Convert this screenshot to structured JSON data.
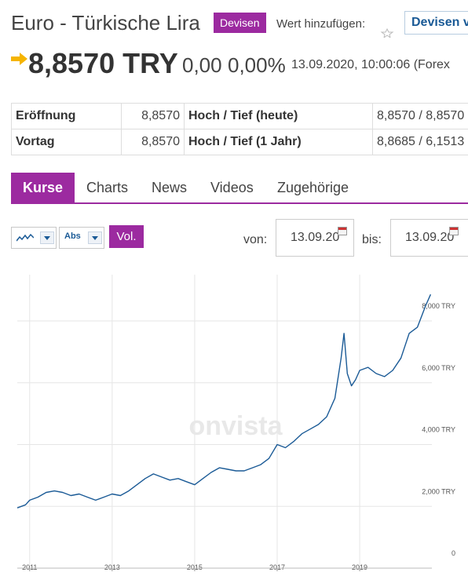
{
  "header": {
    "title": "Euro - Türkische Lira",
    "badge": "Devisen",
    "add_label": "Wert hinzufügen:",
    "watchlist_button": "Devisen v",
    "price": "8,8570 TRY",
    "change_abs": "0,00",
    "change_pct": "0,00%",
    "datetime": "13.09.2020, 10:00:06 (Forex"
  },
  "kpi": {
    "rows": [
      {
        "label1": "Eröffnung",
        "value1": "8,8570",
        "label2": "Hoch / Tief (heute)",
        "value2": "8,8570 / 8,8570"
      },
      {
        "label1": "Vortag",
        "value1": "8,8570",
        "label2": "Hoch / Tief (1 Jahr)",
        "value2": "8,8685 / 6,1513"
      }
    ]
  },
  "tabs": [
    "Kurse",
    "Charts",
    "News",
    "Videos",
    "Zugehörige"
  ],
  "controls": {
    "scale": "Abs",
    "vol": "Vol.",
    "von_label": "von:",
    "von_value": "13.09.20",
    "bis_label": "bis:",
    "bis_value": "13.09.20"
  },
  "colors": {
    "accent": "#9c2aa0",
    "line": "#1a5a96",
    "link": "#1a5a96"
  },
  "chart_data": {
    "type": "line",
    "watermark": "onvista",
    "y_ticks": [
      "8,000 TRY",
      "6,000 TRY",
      "4,000 TRY",
      "2,000 TRY",
      "0"
    ],
    "y_tick_values": [
      8,
      6,
      4,
      2,
      0
    ],
    "x_ticks": [
      "2011",
      "2013",
      "2015",
      "2017",
      "2019"
    ],
    "x_tick_values": [
      2011,
      2013,
      2015,
      2017,
      2019
    ],
    "ylim": [
      0,
      9.5
    ],
    "xlim": [
      2010.7,
      2020.75
    ],
    "series": [
      {
        "x": [
          2010.7,
          2010.9,
          2011.0,
          2011.2,
          2011.4,
          2011.6,
          2011.8,
          2012.0,
          2012.2,
          2012.4,
          2012.6,
          2012.8,
          2013.0,
          2013.2,
          2013.4,
          2013.6,
          2013.8,
          2014.0,
          2014.2,
          2014.4,
          2014.6,
          2014.8,
          2015.0,
          2015.2,
          2015.4,
          2015.6,
          2015.8,
          2016.0,
          2016.2,
          2016.4,
          2016.6,
          2016.8,
          2017.0,
          2017.2,
          2017.4,
          2017.6,
          2017.8,
          2018.0,
          2018.2,
          2018.4,
          2018.55,
          2018.62,
          2018.7,
          2018.8,
          2018.9,
          2019.0,
          2019.2,
          2019.4,
          2019.6,
          2019.8,
          2020.0,
          2020.2,
          2020.4,
          2020.6,
          2020.72
        ],
        "y": [
          1.95,
          2.05,
          2.2,
          2.3,
          2.45,
          2.5,
          2.45,
          2.35,
          2.4,
          2.3,
          2.2,
          2.3,
          2.4,
          2.35,
          2.5,
          2.7,
          2.9,
          3.05,
          2.95,
          2.85,
          2.9,
          2.8,
          2.7,
          2.9,
          3.1,
          3.25,
          3.2,
          3.15,
          3.15,
          3.25,
          3.35,
          3.55,
          4.0,
          3.9,
          4.1,
          4.35,
          4.5,
          4.65,
          4.9,
          5.5,
          6.8,
          7.6,
          6.3,
          5.9,
          6.1,
          6.4,
          6.5,
          6.3,
          6.2,
          6.4,
          6.8,
          7.6,
          7.8,
          8.5,
          8.86
        ]
      }
    ]
  }
}
